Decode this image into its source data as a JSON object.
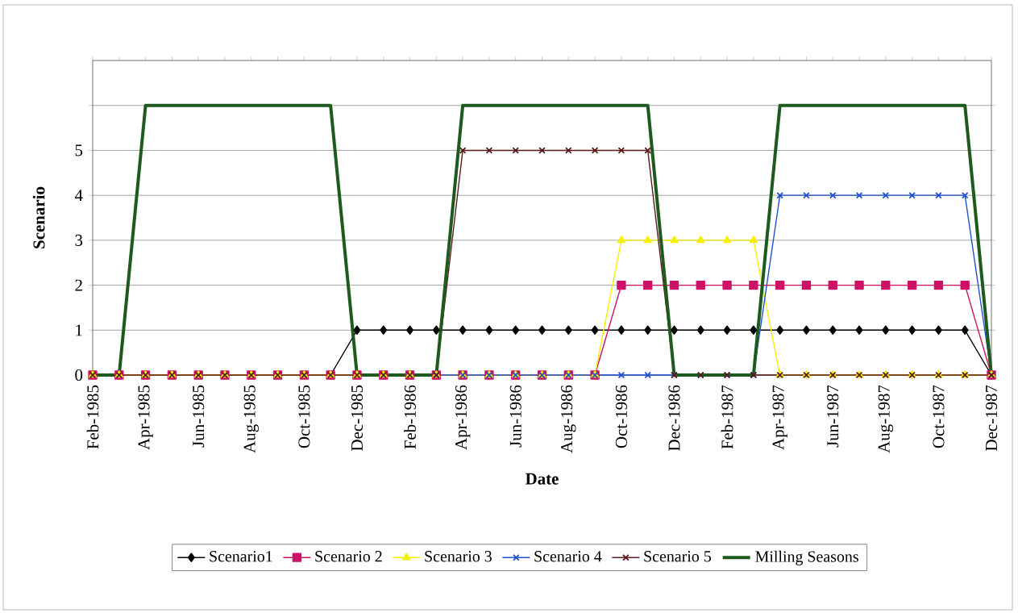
{
  "chart_data": {
    "type": "line",
    "xlabel": "Date",
    "ylabel": "Scenario",
    "categories": [
      "Feb-1985",
      null,
      "Apr-1985",
      null,
      "Jun-1985",
      null,
      "Aug-1985",
      null,
      "Oct-1985",
      null,
      "Dec-1985",
      null,
      "Feb-1986",
      null,
      "Apr-1986",
      null,
      "Jun-1986",
      null,
      "Aug-1986",
      null,
      "Oct-1986",
      null,
      "Dec-1986",
      null,
      "Feb-1987",
      null,
      "Apr-1987",
      null,
      "Jun-1987",
      null,
      "Aug-1987",
      null,
      "Oct-1987",
      null,
      "Dec-1987"
    ],
    "ylim": [
      0,
      7
    ],
    "yticks": [
      0,
      1,
      2,
      3,
      4,
      5,
      {
        "value": 6,
        "label": null
      }
    ],
    "grid": "y",
    "legend": "bottom",
    "line_style": "solid",
    "series": [
      {
        "name": "Scenario1",
        "color": "#000000",
        "marker": "diamond",
        "values": [
          null,
          null,
          null,
          null,
          null,
          null,
          null,
          null,
          null,
          0,
          1,
          1,
          1,
          1,
          1,
          1,
          1,
          1,
          1,
          1,
          1,
          1,
          1,
          1,
          1,
          1,
          1,
          1,
          1,
          1,
          1,
          1,
          1,
          1,
          0
        ]
      },
      {
        "name": "Scenario 2",
        "color": "#cc1166",
        "marker": "square",
        "values": [
          0,
          0,
          0,
          0,
          0,
          0,
          0,
          0,
          0,
          0,
          0,
          0,
          0,
          0,
          0,
          0,
          0,
          0,
          0,
          0,
          2,
          2,
          2,
          2,
          2,
          2,
          2,
          2,
          2,
          2,
          2,
          2,
          2,
          2,
          0
        ]
      },
      {
        "name": "Scenario 3",
        "color": "#f5f000",
        "marker": "triangle",
        "values": [
          0,
          0,
          0,
          0,
          0,
          0,
          0,
          0,
          0,
          0,
          0,
          0,
          0,
          0,
          0,
          0,
          0,
          0,
          0,
          0,
          3,
          3,
          3,
          3,
          3,
          3,
          0,
          0,
          0,
          0,
          0,
          0,
          0,
          0,
          0
        ]
      },
      {
        "name": "Scenario 4",
        "color": "#1f4fd0",
        "marker": "cross",
        "values": [
          null,
          null,
          null,
          null,
          null,
          null,
          null,
          null,
          null,
          null,
          null,
          null,
          null,
          0,
          0,
          0,
          0,
          0,
          0,
          0,
          0,
          0,
          0,
          0,
          0,
          0,
          4,
          4,
          4,
          4,
          4,
          4,
          4,
          4,
          0
        ]
      },
      {
        "name": "Scenario 5",
        "color": "#5a1a1a",
        "marker": "cross",
        "values": [
          0,
          0,
          0,
          0,
          0,
          0,
          0,
          0,
          0,
          0,
          0,
          0,
          0,
          0,
          5,
          5,
          5,
          5,
          5,
          5,
          5,
          5,
          0,
          0,
          0,
          0,
          0,
          0,
          0,
          0,
          0,
          0,
          0,
          0,
          0
        ]
      },
      {
        "name": "Milling Seasons",
        "color": "#1e5a1e",
        "marker": "none",
        "values": [
          0,
          0,
          6,
          6,
          6,
          6,
          6,
          6,
          6,
          6,
          0,
          0,
          0,
          0,
          6,
          6,
          6,
          6,
          6,
          6,
          6,
          6,
          0,
          0,
          0,
          0,
          6,
          6,
          6,
          6,
          6,
          6,
          6,
          6,
          0
        ]
      }
    ]
  }
}
